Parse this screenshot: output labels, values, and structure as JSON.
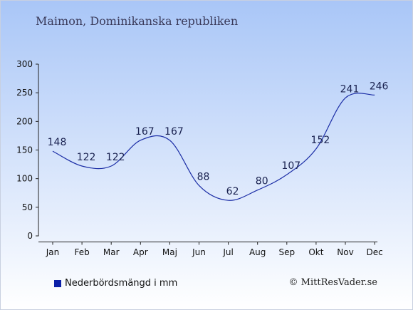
{
  "title": "Maimon, Dominikanska republiken",
  "legend_label": "Nederbördsmängd i mm",
  "credit": "© MittResVader.se",
  "colors": {
    "background_top": "#a9c6f7",
    "background_bottom": "#ffffff",
    "line": "#1c2ea6",
    "legend_swatch": "#0a1fa8",
    "label_text": "#1a2250",
    "axis_text": "#111111"
  },
  "chart_data": {
    "type": "line",
    "title": "Maimon, Dominikanska republiken",
    "xlabel": "",
    "ylabel": "",
    "categories": [
      "Jan",
      "Feb",
      "Mar",
      "Apr",
      "Maj",
      "Jun",
      "Jul",
      "Aug",
      "Sep",
      "Okt",
      "Nov",
      "Dec"
    ],
    "series": [
      {
        "name": "Nederbördsmängd i mm",
        "values": [
          148,
          122,
          122,
          167,
          167,
          88,
          62,
          80,
          107,
          152,
          241,
          246
        ]
      }
    ],
    "data_labels": [
      "148",
      "122",
      "122",
      "167",
      "167",
      "88",
      "62",
      "80",
      "107",
      "152",
      "241",
      "246"
    ],
    "y_ticks": [
      0,
      50,
      100,
      150,
      200,
      250,
      300
    ],
    "ylim": [
      0,
      300
    ],
    "grid": false,
    "legend_position": "bottom-left"
  }
}
